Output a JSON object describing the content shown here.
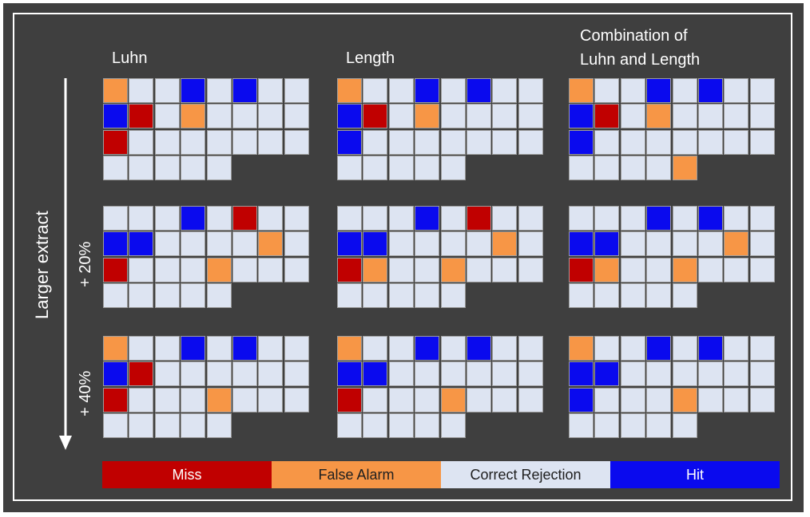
{
  "columns": [
    {
      "title": "Luhn"
    },
    {
      "title": "Length"
    },
    {
      "title": "Combination of\nLuhn and Length"
    }
  ],
  "axis_label": "Larger extract",
  "row_labels": [
    "",
    "+ 20%",
    "+ 40%"
  ],
  "legend": [
    {
      "label": "Miss",
      "color": "#c00000",
      "text_color": "#ffffff"
    },
    {
      "label": "False Alarm",
      "color": "#f79646",
      "text_color": "#202020"
    },
    {
      "label": "Correct Rejection",
      "color": "#dde4f2",
      "text_color": "#202020"
    },
    {
      "label": "Hit",
      "color": "#0a0aee",
      "text_color": "#ffffff"
    }
  ],
  "code_legend": {
    "M": "Miss",
    "F": "False Alarm",
    "C": "Correct Rejection",
    "H": "Hit"
  },
  "grids": [
    [
      [
        "FCCHCHCC",
        "HMCFCCCC",
        "MCCCCCCC",
        "CCCCC"
      ],
      [
        "CCCHCMCC",
        "HHCCCCFC",
        "MCCCFCCC",
        "CCCCC"
      ],
      [
        "FCCHCHCC",
        "HMCCCCCC",
        "MCCCFCCC",
        "CCCCC"
      ]
    ],
    [
      [
        "FCCHCHCC",
        "HMCFCCCC",
        "HCCCCCCC",
        "CCCCC"
      ],
      [
        "CCCHCMCC",
        "HHCCCCFC",
        "MFCCFCCC",
        "CCCCC"
      ],
      [
        "FCCHCHCC",
        "HHCCCCCC",
        "MCCCFCCC",
        "CCCCC"
      ]
    ],
    [
      [
        "FCCHCHCC",
        "HMCFCCCC",
        "HCCCCCCC",
        "CCCCF"
      ],
      [
        "CCCHCHCC",
        "HHCCCCFC",
        "MFCCFCCC",
        "CCCCC"
      ],
      [
        "FCCHCHCC",
        "HHCCCCCC",
        "HCCCFCCC",
        "CCCCC"
      ]
    ]
  ]
}
